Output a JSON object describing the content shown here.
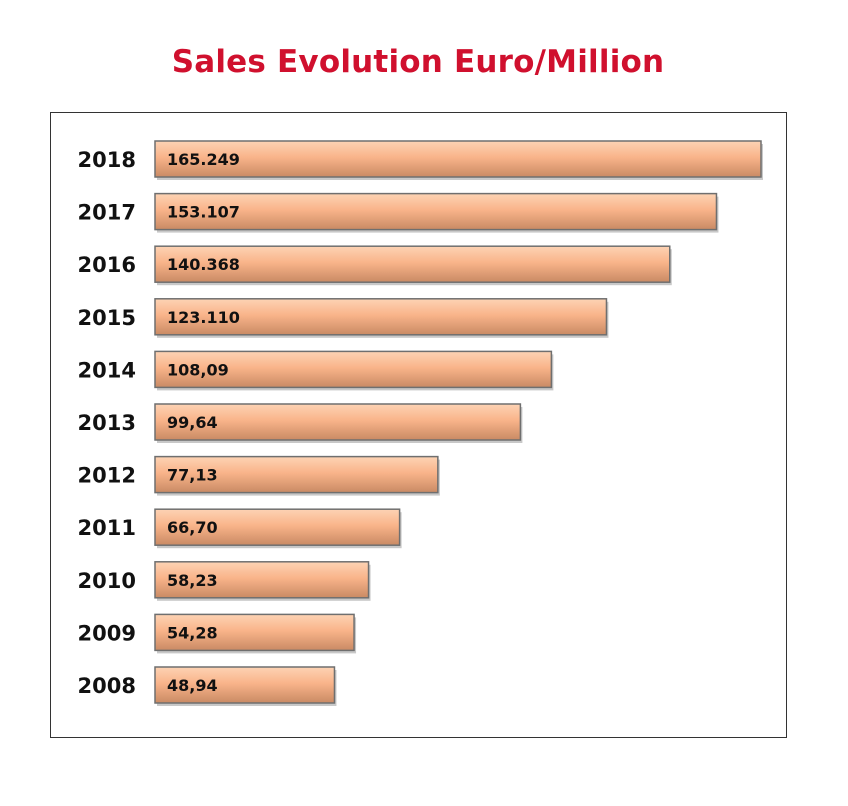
{
  "chart_data": {
    "type": "bar",
    "orientation": "horizontal",
    "title": "Sales Evolution Euro/Million",
    "categories": [
      "2018",
      "2017",
      "2016",
      "2015",
      "2014",
      "2013",
      "2012",
      "2011",
      "2010",
      "2009",
      "2008"
    ],
    "values": [
      165.249,
      153.107,
      140.368,
      123.11,
      108.09,
      99.64,
      77.13,
      66.7,
      58.23,
      54.28,
      48.94
    ],
    "value_labels": [
      "165.249",
      "153.107",
      "140.368",
      "123.110",
      "108,09",
      "99,64",
      "77,13",
      "66,70",
      "58,23",
      "54,28",
      "48,94"
    ],
    "xlabel": "",
    "ylabel": "",
    "xlim": [
      0,
      165.249
    ],
    "grid": false,
    "legend": "none",
    "colors": {
      "title": "#d0102e",
      "bar_fill": "#f9b48a",
      "bar_highlight": "#fdd3b4",
      "bar_shadow": "#c98a64",
      "bar_border": "#6f6f6f",
      "frame": "#333333"
    }
  }
}
